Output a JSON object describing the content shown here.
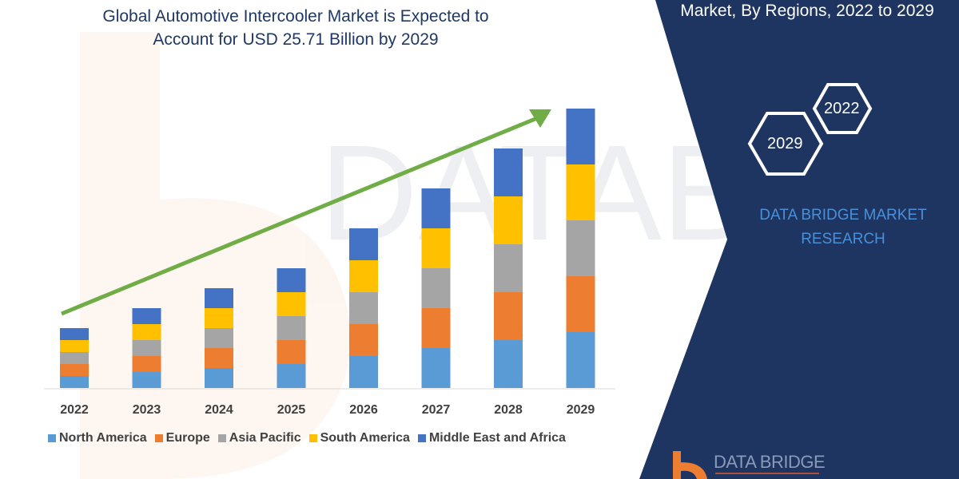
{
  "header": {
    "title_line1": "Global Automotive Intercooler Market is Expected to",
    "title_line2": "Account for USD 25.71 Billion by 2029"
  },
  "side_panel": {
    "title": "Market, By Regions, 2022 to 2029",
    "hex_years": [
      "2022",
      "2029"
    ],
    "brand_line1": "DATA BRIDGE MARKET",
    "brand_line2": "RESEARCH",
    "logo_text": "DATA BRIDGE",
    "panel_color": "#1e3461"
  },
  "chart_data": {
    "type": "bar",
    "stacked": true,
    "categories": [
      "2022",
      "2023",
      "2024",
      "2025",
      "2026",
      "2027",
      "2028",
      "2029"
    ],
    "series": [
      {
        "name": "North America",
        "color": "#5b9bd5",
        "values": [
          15,
          20,
          25,
          30,
          40,
          50,
          60,
          70
        ]
      },
      {
        "name": "Europe",
        "color": "#ed7d31",
        "values": [
          15,
          20,
          25,
          30,
          40,
          50,
          60,
          70
        ]
      },
      {
        "name": "Asia Pacific",
        "color": "#a5a5a5",
        "values": [
          15,
          20,
          25,
          30,
          40,
          50,
          60,
          70
        ]
      },
      {
        "name": "South America",
        "color": "#ffc000",
        "values": [
          15,
          20,
          25,
          30,
          40,
          50,
          60,
          70
        ]
      },
      {
        "name": "Middle East and Africa",
        "color": "#4472c4",
        "values": [
          15,
          20,
          25,
          30,
          40,
          50,
          60,
          70
        ]
      }
    ],
    "y_axis_shown": false,
    "grid": false,
    "legend_position": "bottom",
    "trend_arrow_color": "#70ad47"
  }
}
